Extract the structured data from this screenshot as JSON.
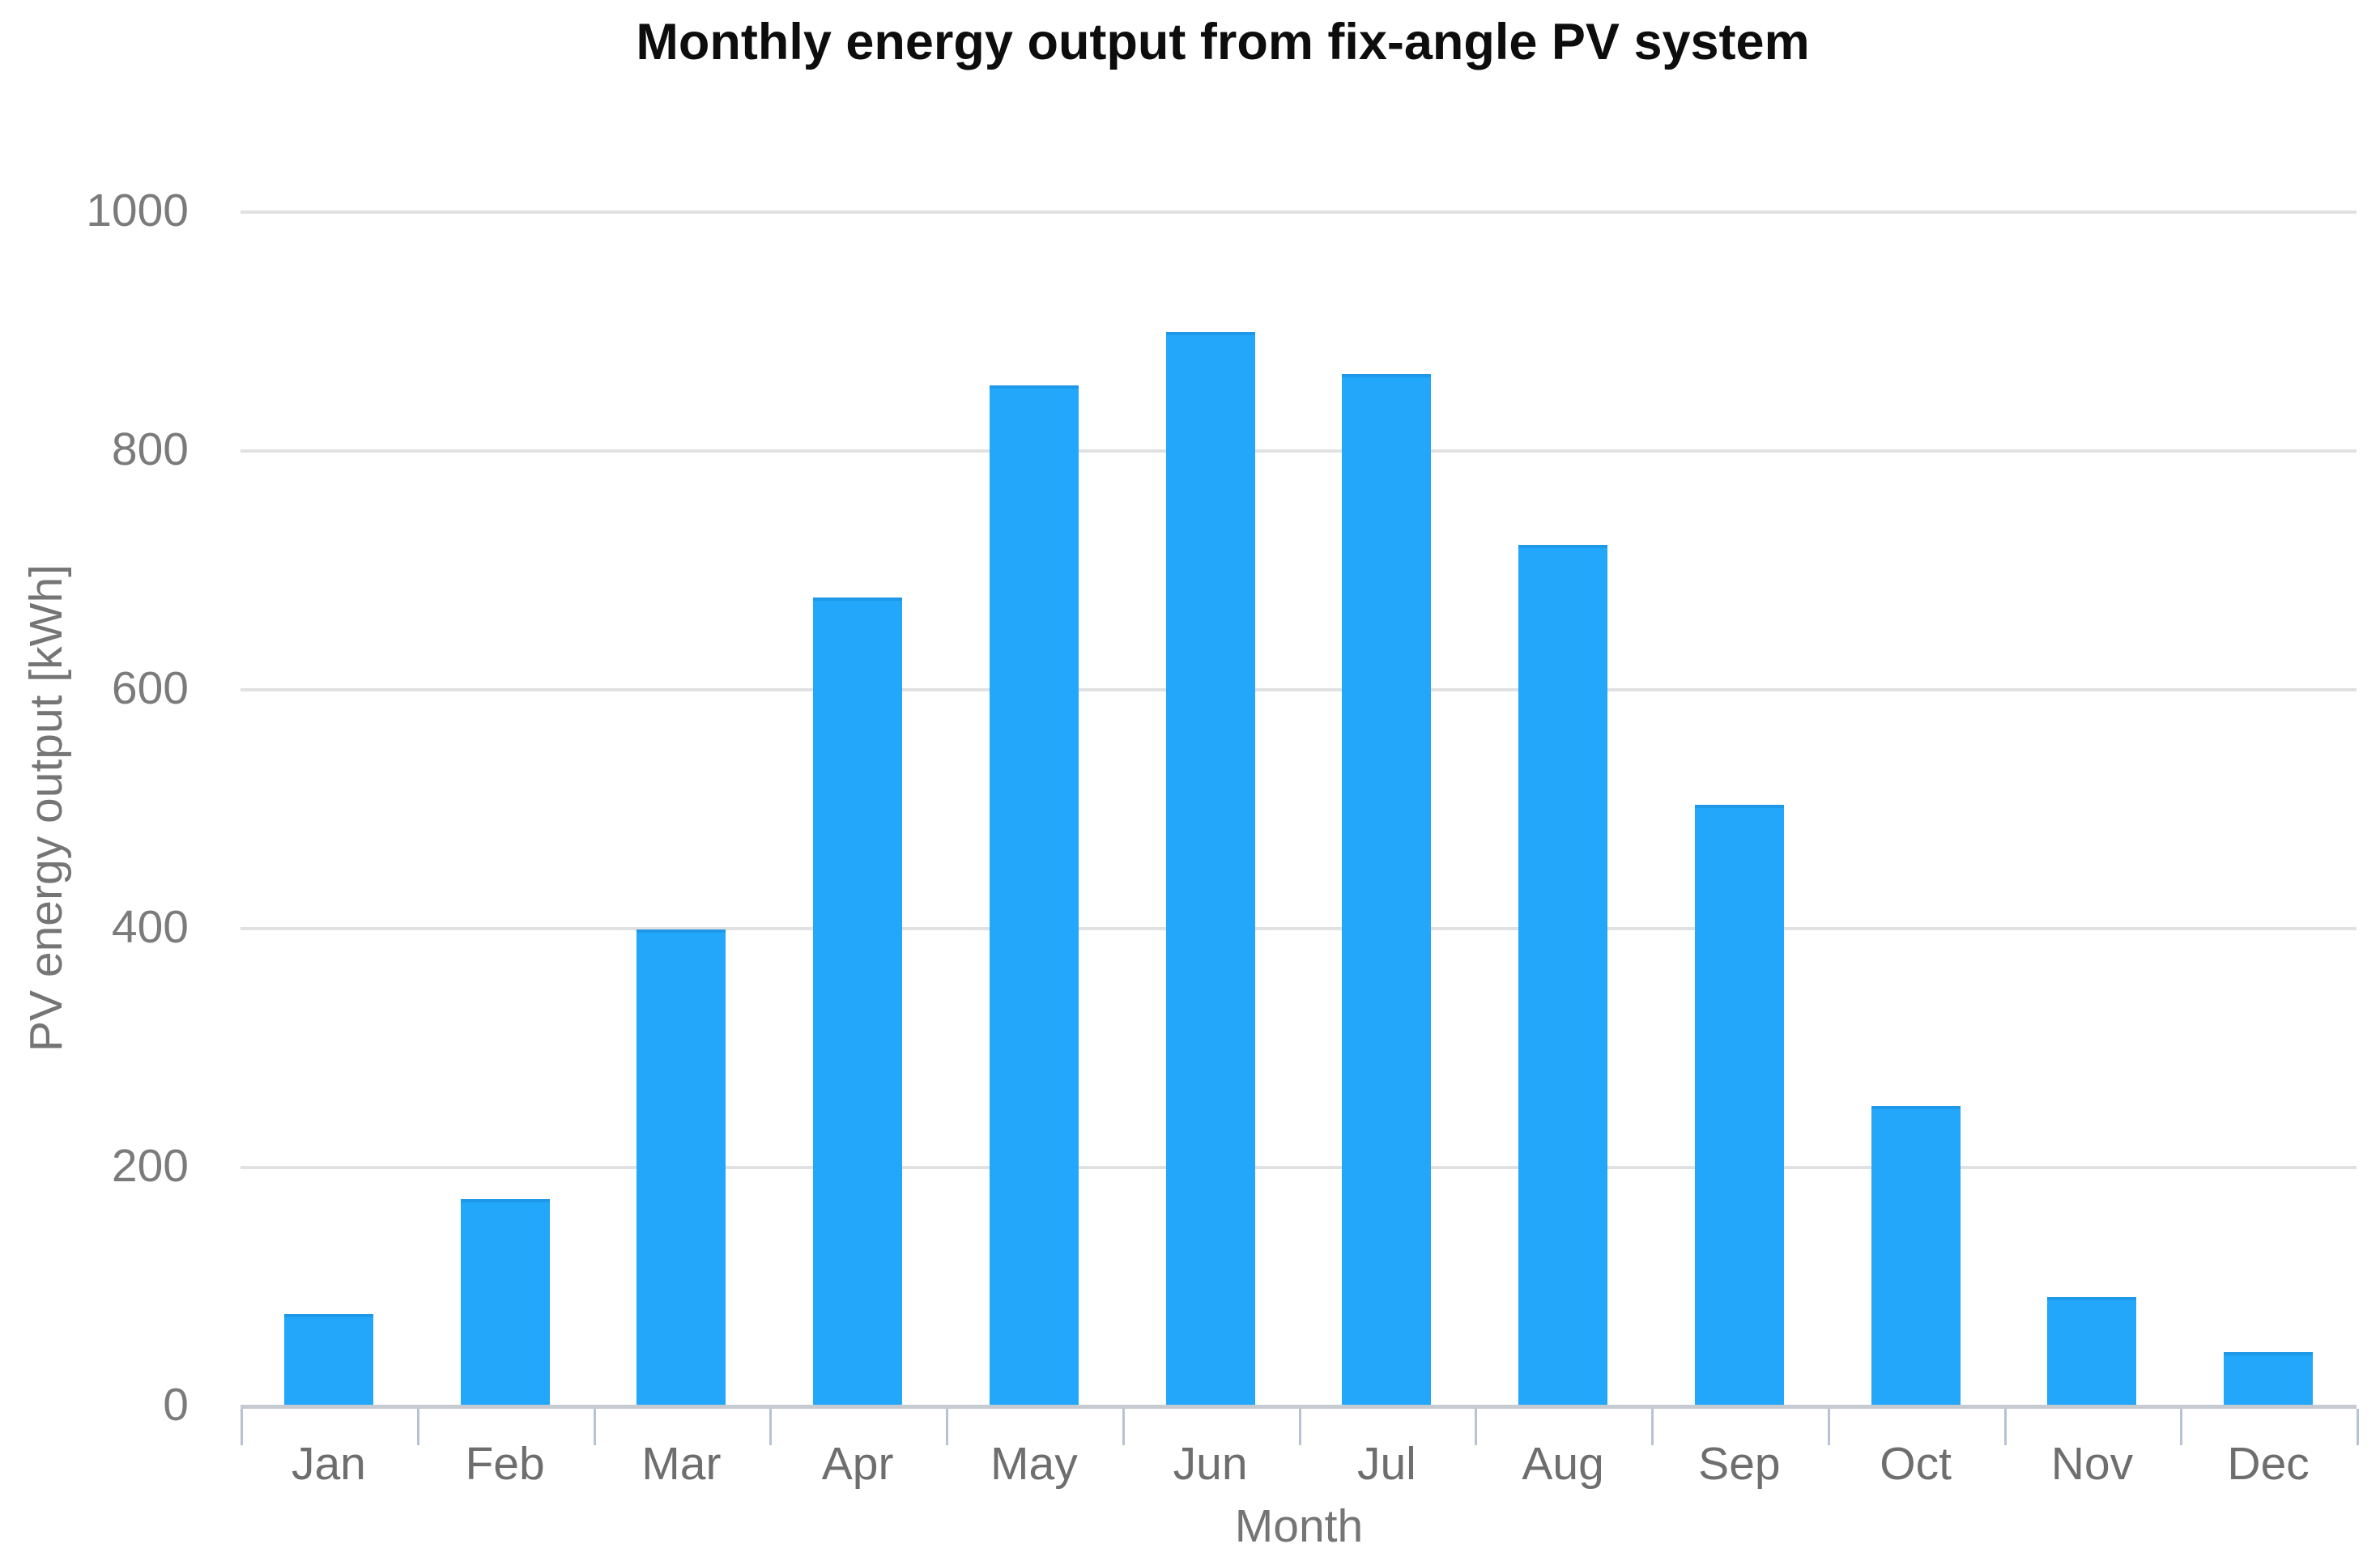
{
  "chart": {
    "title": "Monthly energy output from fix-angle PV system",
    "x_axis_title": "Month",
    "y_axis_title": "PV energy output [kWh]",
    "y_tick_labels": [
      "0",
      "200",
      "400",
      "600",
      "800",
      "1000"
    ],
    "bar_color": "#22a7fb",
    "bar_edge_color": "#1e98e8",
    "gridline_color": "#e1e1e1",
    "axis_line_color": "#c6cbd2",
    "tick_color": "#b7c2d4",
    "label_color": "#757575",
    "title_color": "#0d0d0d"
  },
  "chart_data": {
    "type": "bar",
    "categories": [
      "Jan",
      "Feb",
      "Mar",
      "Apr",
      "May",
      "Jun",
      "Jul",
      "Aug",
      "Sep",
      "Oct",
      "Nov",
      "Dec"
    ],
    "values": [
      76,
      172,
      398,
      676,
      853,
      898,
      863,
      720,
      502,
      250,
      90,
      44
    ],
    "title": "Monthly energy output from fix-angle PV system",
    "xlabel": "Month",
    "ylabel": "PV energy output [kWh]",
    "ylim": [
      0,
      1000
    ],
    "ytick_step": 200,
    "grid": true,
    "legend": false,
    "bar_color": "#22a7fb"
  }
}
